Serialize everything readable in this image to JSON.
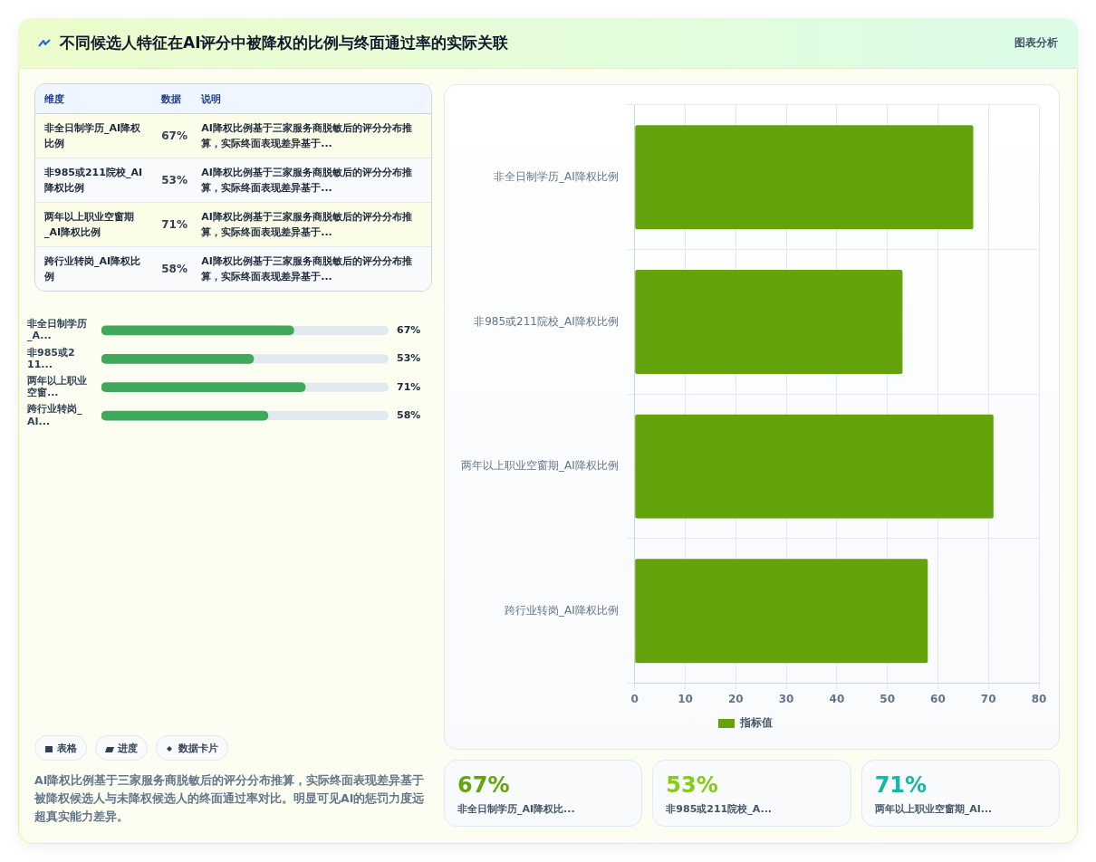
{
  "chart_data": [
    {
      "type": "other",
      "title": "不同候选人特征在AI评分中被降权的比例与终面通过率的实际关联",
      "subtitle": "图表分析"
    },
    {
      "type": "other",
      "categories": [
        "非全日制学历_AI降权比例",
        "非985或211院校_AI降权比例",
        "两年以上职业空窗期_AI降权比例",
        "跨行业转岗_AI降权比例"
      ],
      "values": [
        67,
        53,
        71,
        58
      ],
      "value_labels": [
        "67%",
        "53%",
        "71%",
        "58%"
      ],
      "annotations": [
        "维度",
        "数据",
        "说明",
        "AI降权比例基于三家服务商脱敏后的评分分布推算，实际终面表现差异基于...",
        "AI降权比例基于三家服务商脱敏后的评分分布推算，实际终面表现差异基于...",
        "AI降权比例基于三家服务商脱敏后的评分分布推算，实际终面表现差异基于...",
        "AI降权比例基于三家服务商脱敏后的评分分布推算，实际终面表现差异基于..."
      ]
    },
    {
      "type": "bar",
      "orientation": "horizontal",
      "categories": [
        "非全日制学历_A...",
        "非985或211...",
        "两年以上职业空窗...",
        "跨行业转岗_AI..."
      ],
      "values": [
        67,
        53,
        71,
        58
      ],
      "value_labels": [
        "67%",
        "53%",
        "71%",
        "58%"
      ],
      "color": "#3fa85a",
      "xlim": [
        0,
        100
      ],
      "tick_labels": "y"
    },
    {
      "type": "other",
      "annotations": [
        "表格",
        "进度",
        "数据卡片",
        "AI降权比例基于三家服务商脱敏后的评分分布推算，实际终面表现差异基于被降权候选人与未降权候选人的终面通过率对比。明显可见AI的惩罚力度远超真实能力差异。"
      ]
    },
    {
      "type": "bar",
      "orientation": "horizontal",
      "categories": [
        "非全日制学历_AI降权比例",
        "非985或211院校_AI降权比例",
        "两年以上职业空窗期_AI降权比例",
        "跨行业转岗_AI降权比例"
      ],
      "series": [
        {
          "name": "指标值",
          "color": "#65a30d",
          "values": [
            67,
            53,
            71,
            58
          ]
        }
      ],
      "xlim": [
        0,
        80
      ],
      "xticks": [
        0,
        10,
        20,
        30,
        40,
        50,
        60,
        70,
        80
      ],
      "grid": true,
      "legend": "bottom"
    },
    {
      "type": "other",
      "categories": [
        "非全日制学历_AI降权比...",
        "非985或211院校_A...",
        "两年以上职业空窗期_AI..."
      ],
      "values": [
        67,
        53,
        71
      ],
      "value_labels": [
        "67%",
        "53%",
        "71%"
      ]
    }
  ]
}
